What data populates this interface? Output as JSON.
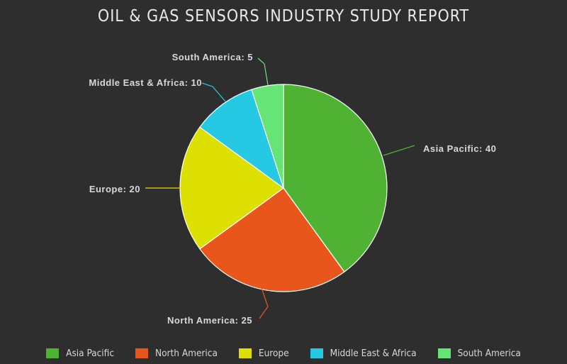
{
  "chart_data": {
    "type": "pie",
    "title": "OIL & GAS SENSORS INDUSTRY STUDY REPORT",
    "slices": [
      {
        "label": "Asia Pacific",
        "value": 40,
        "color": "#4fb233",
        "data_label": "Asia Pacific: 40"
      },
      {
        "label": "North America",
        "value": 25,
        "color": "#e9561b",
        "data_label": "North America: 25"
      },
      {
        "label": "Europe",
        "value": 20,
        "color": "#dde000",
        "data_label": "Europe: 20"
      },
      {
        "label": "Middle East & Africa",
        "value": 10,
        "color": "#26c9e4",
        "data_label": "Middle East & Africa: 10"
      },
      {
        "label": "South America",
        "value": 5,
        "color": "#66e576",
        "data_label": "South America: 5"
      }
    ],
    "legend_position": "bottom"
  }
}
